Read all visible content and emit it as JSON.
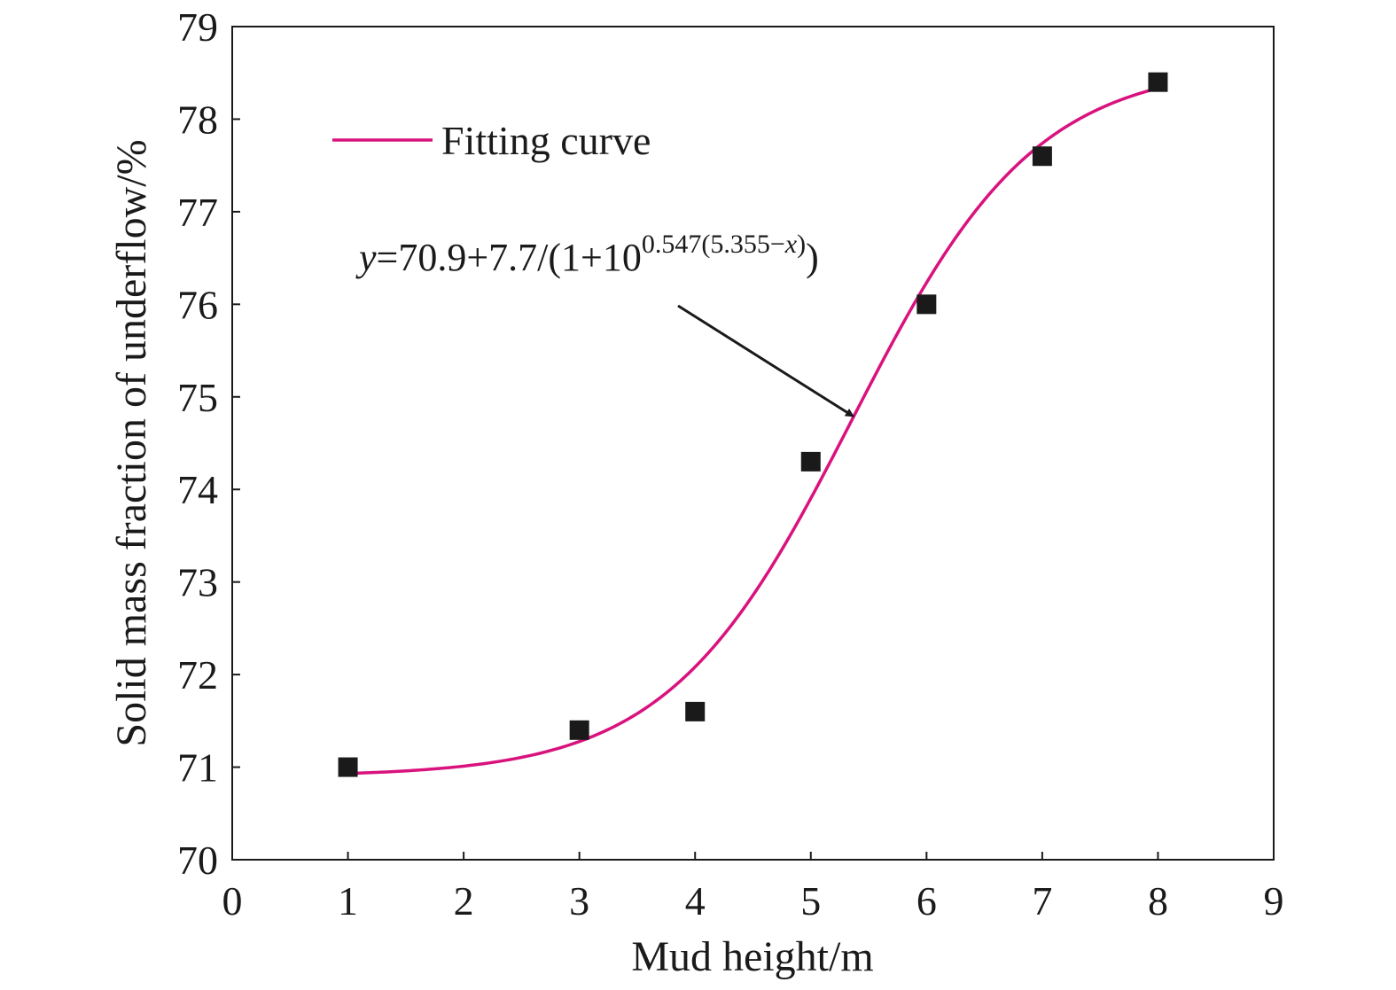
{
  "chart_data": {
    "type": "scatter",
    "title": "",
    "xlabel": "Mud height/m",
    "ylabel": "Solid mass fraction of underflow/%",
    "xlim": [
      0,
      9
    ],
    "ylim": [
      70,
      79
    ],
    "xticks": [
      "0",
      "1",
      "2",
      "3",
      "4",
      "5",
      "6",
      "7",
      "8",
      "9"
    ],
    "yticks": [
      "70",
      "71",
      "72",
      "73",
      "74",
      "75",
      "76",
      "77",
      "78",
      "79"
    ],
    "grid": false,
    "legend_position": "top-left",
    "series": [
      {
        "kind": "scatter",
        "marker": "square",
        "x": [
          1,
          3,
          4,
          5,
          6,
          7,
          8
        ],
        "y": [
          71.0,
          71.4,
          71.6,
          74.3,
          76.0,
          77.6,
          78.4
        ]
      },
      {
        "name": "Fitting curve",
        "kind": "line",
        "color": "#d9127e",
        "model": {
          "A": 70.9,
          "B": 7.7,
          "k": 0.547,
          "x0": 5.355
        },
        "x_range": [
          1,
          8
        ]
      }
    ],
    "annotation": {
      "y_var": "y",
      "main": "=70.9+7.7/(1+10",
      "exponent_pre": "0.547(5.355−",
      "exponent_var": "x",
      "exponent_post": ")",
      "close": ")",
      "arrow_target": {
        "x": 5.4,
        "y": 74.75
      }
    }
  }
}
